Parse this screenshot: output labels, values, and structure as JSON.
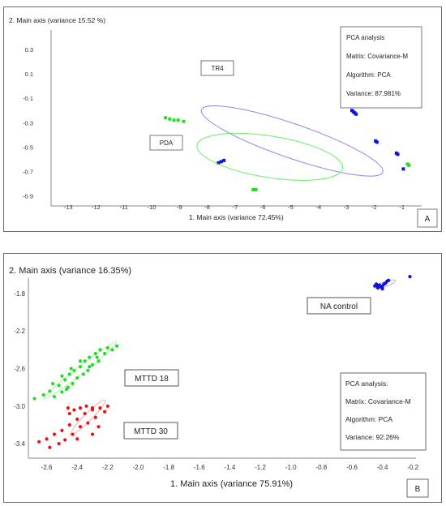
{
  "chart_data": [
    {
      "type": "scatter",
      "panel_label": "A",
      "xlabel": "1.       Main axis (variance 72.45%)",
      "ylabel": "2. Main axis (variance 15.52 %)",
      "xlim": [
        -13.5,
        0
      ],
      "ylim": [
        -0.95,
        0.38
      ],
      "x_ticks": [
        -13,
        -12,
        -11,
        -10,
        -9,
        -8,
        -7,
        -6,
        -5,
        -4,
        -3,
        -2,
        -1
      ],
      "y_ticks": [
        0.3,
        0.1,
        -0.1,
        -0.3,
        -0.5,
        -0.7,
        -0.9
      ],
      "x_tick_labels": [
        "-13",
        "-12",
        "-11",
        "-10",
        "-9",
        "-8",
        "-7",
        "-6",
        "-5",
        "-4",
        "-3",
        "-2",
        "-1"
      ],
      "y_tick_labels": [
        "0.3",
        "0.1",
        "-0.1",
        "-0.3",
        "-0.5",
        "-0.7",
        "-0.9"
      ],
      "series": [
        {
          "name": "TR4",
          "color": "#1010dd",
          "points": [
            [
              -7.6,
              -0.63
            ],
            [
              -7.5,
              -0.62
            ],
            [
              -7.4,
              -0.61
            ],
            [
              -2.8,
              -0.2
            ],
            [
              -2.75,
              -0.21
            ],
            [
              -2.7,
              -0.22
            ],
            [
              -2.65,
              -0.23
            ],
            [
              -1.95,
              -0.45
            ],
            [
              -1.9,
              -0.46
            ],
            [
              -1.2,
              -0.55
            ],
            [
              -1.15,
              -0.56
            ],
            [
              -0.95,
              -0.68
            ]
          ],
          "ellipse": {
            "cx": -4.95,
            "cy": -0.45,
            "rx": 6.9,
            "ry": 0.14,
            "angle_deg": 19
          }
        },
        {
          "name": "PDA",
          "color": "#22dd22",
          "points": [
            [
              -9.5,
              -0.26
            ],
            [
              -9.35,
              -0.27
            ],
            [
              -9.2,
              -0.28
            ],
            [
              -9.05,
              -0.28
            ],
            [
              -8.85,
              -0.29
            ],
            [
              -6.35,
              -0.85
            ],
            [
              -6.25,
              -0.85
            ],
            [
              -0.8,
              -0.64
            ],
            [
              -0.75,
              -0.65
            ]
          ],
          "ellipse": {
            "cx": -5.75,
            "cy": -0.58,
            "rx": 5.3,
            "ry": 0.17,
            "angle_deg": 9
          }
        }
      ],
      "annotation_labels": [
        "TR4",
        "PDA"
      ],
      "info_box": [
        "PCA analysis",
        "Matrix: Covariance-M",
        "Algorithm: PCA",
        "Variance: 87.981%"
      ]
    },
    {
      "type": "scatter",
      "panel_label": "B",
      "xlabel": "1.     Main axis (variance 75.91%)",
      "ylabel": "2. Main axis (variance 16.35%)",
      "xlim": [
        -2.72,
        -0.18
      ],
      "ylim": [
        -3.52,
        -1.55
      ],
      "x_ticks": [
        -2.6,
        -2.4,
        -2.2,
        -2.0,
        -1.8,
        -1.6,
        -1.4,
        -1.2,
        -1.0,
        -0.8,
        -0.6,
        -0.4,
        -0.2
      ],
      "y_ticks": [
        -1.8,
        -2.2,
        -2.6,
        -3.0,
        -3.4
      ],
      "x_tick_labels": [
        "-2.6",
        "-2.4",
        "-2.2",
        "-2.0",
        "-1.8",
        "-1.6",
        "-1.4",
        "-1.2",
        "-1.0",
        "-0.8",
        "-0.6",
        "-0.4",
        "-0.2"
      ],
      "y_tick_labels": [
        "-1.8",
        "-2.2",
        "-2.6",
        "-3.0",
        "-3.4"
      ],
      "series": [
        {
          "name": "NA control",
          "color": "#1010dd",
          "points": [
            [
              -0.45,
              -1.72
            ],
            [
              -0.44,
              -1.7
            ],
            [
              -0.43,
              -1.72
            ],
            [
              -0.42,
              -1.71
            ],
            [
              -0.41,
              -1.73
            ],
            [
              -0.4,
              -1.72
            ],
            [
              -0.39,
              -1.7
            ],
            [
              -0.38,
              -1.69
            ],
            [
              -0.37,
              -1.67
            ],
            [
              -0.36,
              -1.66
            ],
            [
              -0.22,
              -1.62
            ],
            [
              -0.43,
              -1.74
            ],
            [
              -0.4,
              -1.75
            ]
          ],
          "ellipse": {
            "cx": -0.38,
            "cy": -1.7,
            "rx": 0.07,
            "ry": 0.025,
            "angle_deg": -20
          }
        },
        {
          "name": "MTTD 18",
          "color": "#22dd22",
          "points": [
            [
              -2.68,
              -2.92
            ],
            [
              -2.62,
              -2.88
            ],
            [
              -2.58,
              -2.84
            ],
            [
              -2.55,
              -2.9
            ],
            [
              -2.52,
              -2.78
            ],
            [
              -2.5,
              -2.85
            ],
            [
              -2.48,
              -2.72
            ],
            [
              -2.46,
              -2.8
            ],
            [
              -2.45,
              -2.66
            ],
            [
              -2.43,
              -2.76
            ],
            [
              -2.42,
              -2.62
            ],
            [
              -2.4,
              -2.7
            ],
            [
              -2.38,
              -2.58
            ],
            [
              -2.36,
              -2.66
            ],
            [
              -2.35,
              -2.52
            ],
            [
              -2.33,
              -2.62
            ],
            [
              -2.32,
              -2.48
            ],
            [
              -2.3,
              -2.56
            ],
            [
              -2.28,
              -2.44
            ],
            [
              -2.26,
              -2.52
            ],
            [
              -2.25,
              -2.4
            ],
            [
              -2.22,
              -2.44
            ],
            [
              -2.2,
              -2.38
            ],
            [
              -2.17,
              -2.4
            ],
            [
              -2.14,
              -2.36
            ],
            [
              -2.5,
              -2.68
            ],
            [
              -2.44,
              -2.6
            ],
            [
              -2.38,
              -2.52
            ],
            [
              -2.32,
              -2.58
            ],
            [
              -2.27,
              -2.48
            ],
            [
              -2.56,
              -2.76
            ],
            [
              -2.47,
              -2.82
            ]
          ],
          "ellipse": {
            "cx": -2.38,
            "cy": -2.62,
            "rx": 0.3,
            "ry": 0.04,
            "angle_deg": -38
          }
        },
        {
          "name": "MTTD 30",
          "color": "#ee1111",
          "points": [
            [
              -2.65,
              -3.38
            ],
            [
              -2.6,
              -3.35
            ],
            [
              -2.58,
              -3.44
            ],
            [
              -2.55,
              -3.3
            ],
            [
              -2.52,
              -3.4
            ],
            [
              -2.5,
              -3.26
            ],
            [
              -2.48,
              -3.36
            ],
            [
              -2.45,
              -3.2
            ],
            [
              -2.43,
              -3.3
            ],
            [
              -2.4,
              -3.14
            ],
            [
              -2.38,
              -3.22
            ],
            [
              -2.35,
              -3.08
            ],
            [
              -2.33,
              -3.18
            ],
            [
              -2.3,
              -3.04
            ],
            [
              -2.28,
              -3.12
            ],
            [
              -2.25,
              -3.02
            ],
            [
              -2.22,
              -3.06
            ],
            [
              -2.2,
              -3.0
            ],
            [
              -2.45,
              -3.08
            ],
            [
              -2.42,
              -3.04
            ],
            [
              -2.38,
              -3.02
            ],
            [
              -2.34,
              -3.0
            ],
            [
              -2.3,
              -3.02
            ],
            [
              -2.46,
              -3.02
            ],
            [
              -2.4,
              -3.35
            ],
            [
              -2.3,
              -3.3
            ],
            [
              -2.26,
              -3.22
            ]
          ],
          "ellipse": {
            "cx": -2.33,
            "cy": -3.12,
            "rx": 0.16,
            "ry": 0.04,
            "angle_deg": -45
          }
        }
      ],
      "annotation_labels": [
        "NA control",
        "MTTD 18",
        "MTTD 30"
      ],
      "info_box": [
        "PCA analysis:",
        "Matrix: Covariance-M",
        "Algorithm: PCA",
        "Variance: 92.26%"
      ]
    }
  ]
}
